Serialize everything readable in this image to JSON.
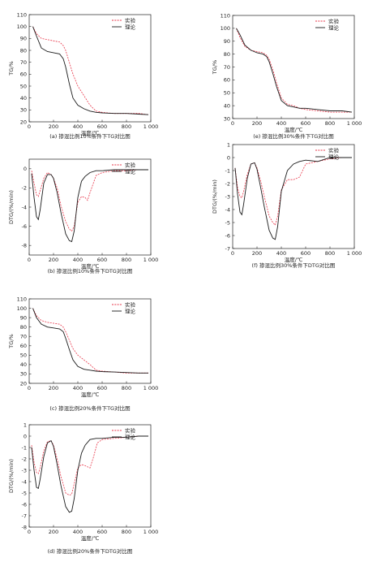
{
  "legend": {
    "exp": "实验",
    "theory": "理论"
  },
  "colors": {
    "exp": "#e8374a",
    "theory": "#1a1a1a",
    "axis": "#222222"
  },
  "chart_data": [
    {
      "id": "a",
      "type": "line",
      "caption": "(a) 掺混比例10%条件下TG对比图",
      "xlabel": "温度/℃",
      "ylabel": "TG/%",
      "xlim": [
        0,
        1000
      ],
      "ylim": [
        20,
        110
      ],
      "xticks": [
        0,
        200,
        400,
        600,
        800,
        1000
      ],
      "xtick_labels": [
        "0",
        "200",
        "400",
        "600",
        "800",
        "1 000"
      ],
      "yticks": [
        20,
        30,
        40,
        50,
        60,
        70,
        80,
        90,
        100,
        110
      ],
      "legend_position": "top-right",
      "series": [
        {
          "name": "实验",
          "style": "dashed",
          "x": [
            30,
            60,
            100,
            150,
            200,
            250,
            280,
            300,
            330,
            360,
            400,
            450,
            500,
            550,
            600,
            700,
            800,
            900,
            980
          ],
          "y": [
            100,
            94,
            90,
            89,
            88,
            87,
            84,
            80,
            70,
            60,
            50,
            42,
            34,
            29,
            28,
            27,
            27,
            27,
            26
          ]
        },
        {
          "name": "理论",
          "style": "solid",
          "x": [
            30,
            60,
            100,
            150,
            200,
            250,
            280,
            300,
            330,
            360,
            400,
            450,
            500,
            550,
            600,
            700,
            800,
            900,
            980
          ],
          "y": [
            100,
            92,
            82,
            79,
            78,
            77,
            73,
            66,
            52,
            40,
            34,
            31,
            29,
            28,
            27.5,
            27,
            27,
            26.5,
            26
          ]
        }
      ]
    },
    {
      "id": "e",
      "type": "line",
      "caption": "(e) 掺混比例30%条件下TG对比图",
      "xlabel": "温度/℃",
      "ylabel": "TG/%",
      "xlim": [
        0,
        1000
      ],
      "ylim": [
        30,
        110
      ],
      "xticks": [
        0,
        200,
        400,
        600,
        800,
        1000
      ],
      "xtick_labels": [
        "0",
        "200",
        "400",
        "600",
        "800",
        "1 000"
      ],
      "yticks": [
        30,
        40,
        50,
        60,
        70,
        80,
        90,
        100,
        110
      ],
      "legend_position": "top-right",
      "series": [
        {
          "name": "实验",
          "style": "dashed",
          "x": [
            30,
            60,
            100,
            150,
            200,
            250,
            280,
            300,
            330,
            360,
            400,
            450,
            500,
            550,
            600,
            700,
            800,
            900,
            980
          ],
          "y": [
            100,
            93,
            86,
            83,
            82,
            81,
            79,
            76,
            68,
            58,
            46,
            41,
            40,
            38,
            37,
            36,
            35,
            35,
            35
          ]
        },
        {
          "name": "理论",
          "style": "solid",
          "x": [
            30,
            60,
            100,
            150,
            200,
            250,
            280,
            300,
            330,
            360,
            400,
            450,
            500,
            550,
            600,
            700,
            800,
            900,
            980
          ],
          "y": [
            100,
            95,
            87,
            83,
            81,
            80,
            78,
            74,
            65,
            55,
            44,
            40,
            39,
            38,
            38,
            37,
            36,
            36,
            35
          ]
        }
      ]
    },
    {
      "id": "b",
      "type": "line",
      "caption": "(b) 掺混比例10%条件下DTG对比图",
      "xlabel": "温度/℃",
      "ylabel": "DTG/(%/min)",
      "xlim": [
        0,
        1000
      ],
      "ylim": [
        -9,
        1
      ],
      "xticks": [
        0,
        200,
        400,
        600,
        800,
        1000
      ],
      "xtick_labels": [
        "0",
        "200",
        "400",
        "600",
        "800",
        "1 000"
      ],
      "yticks": [
        0,
        -2,
        -4,
        -6,
        -8
      ],
      "legend_position": "top-right",
      "series": [
        {
          "name": "实验",
          "style": "dashed",
          "x": [
            20,
            40,
            60,
            75,
            90,
            120,
            150,
            180,
            200,
            230,
            260,
            300,
            330,
            350,
            370,
            400,
            430,
            460,
            480,
            500,
            550,
            600,
            700,
            800,
            900,
            980
          ],
          "y": [
            -0.2,
            -1.5,
            -2.7,
            -2.9,
            -2.3,
            -1.0,
            -0.4,
            -0.6,
            -1.0,
            -2.0,
            -3.8,
            -5.5,
            -6.3,
            -6.5,
            -6.0,
            -3.5,
            -2.9,
            -3.0,
            -3.3,
            -2.5,
            -0.7,
            -0.4,
            -0.2,
            -0.2,
            -0.1,
            -0.1
          ]
        },
        {
          "name": "理论",
          "style": "solid",
          "x": [
            20,
            40,
            60,
            75,
            90,
            120,
            150,
            180,
            200,
            230,
            260,
            300,
            330,
            350,
            370,
            400,
            430,
            460,
            500,
            550,
            600,
            700,
            800,
            900,
            980
          ],
          "y": [
            -0.5,
            -3.0,
            -5.0,
            -5.3,
            -4.3,
            -1.5,
            -0.6,
            -0.6,
            -1.0,
            -2.5,
            -4.5,
            -6.8,
            -7.5,
            -7.6,
            -6.5,
            -3.0,
            -1.3,
            -0.8,
            -0.4,
            -0.2,
            -0.2,
            -0.1,
            -0.1,
            -0.1,
            -0.1
          ]
        }
      ]
    },
    {
      "id": "f",
      "type": "line",
      "caption": "(f) 掺混比例30%条件下DTG对比图",
      "xlabel": "温度/℃",
      "ylabel": "DTG/(%/min)",
      "xlim": [
        0,
        1000
      ],
      "ylim": [
        -7,
        1
      ],
      "xticks": [
        0,
        200,
        400,
        600,
        800,
        1000
      ],
      "xtick_labels": [
        "0",
        "200",
        "400",
        "600",
        "800",
        "1 000"
      ],
      "yticks": [
        1,
        0,
        -1,
        -2,
        -3,
        -4,
        -5,
        -6,
        -7
      ],
      "legend_position": "top-right",
      "series": [
        {
          "name": "实验",
          "style": "dashed",
          "x": [
            20,
            40,
            60,
            75,
            90,
            120,
            150,
            180,
            200,
            230,
            260,
            300,
            330,
            350,
            370,
            400,
            450,
            500,
            550,
            600,
            700,
            800,
            900,
            980
          ],
          "y": [
            -0.8,
            -2.3,
            -3.0,
            -3.1,
            -2.6,
            -1.3,
            -0.5,
            -0.4,
            -0.8,
            -1.8,
            -3.0,
            -4.5,
            -5.0,
            -5.2,
            -4.5,
            -2.5,
            -1.7,
            -1.7,
            -1.5,
            -0.5,
            -0.3,
            -0.1,
            0,
            0
          ]
        },
        {
          "name": "理论",
          "style": "solid",
          "x": [
            20,
            40,
            60,
            75,
            90,
            120,
            150,
            180,
            200,
            230,
            260,
            300,
            330,
            350,
            370,
            400,
            450,
            500,
            550,
            600,
            700,
            800,
            900,
            980
          ],
          "y": [
            -0.8,
            -2.8,
            -4.2,
            -4.4,
            -3.6,
            -1.6,
            -0.5,
            -0.4,
            -0.9,
            -2.3,
            -3.8,
            -5.6,
            -6.2,
            -6.3,
            -5.3,
            -2.6,
            -1.0,
            -0.5,
            -0.3,
            -0.2,
            -0.3,
            0,
            0,
            0
          ]
        }
      ]
    },
    {
      "id": "c",
      "type": "line",
      "caption": "(c) 掺混比例20%条件下TG对比图",
      "xlabel": "温度/℃",
      "ylabel": "TG/%",
      "xlim": [
        0,
        1000
      ],
      "ylim": [
        20,
        110
      ],
      "xticks": [
        0,
        200,
        400,
        600,
        800,
        1000
      ],
      "xtick_labels": [
        "0",
        "200",
        "400",
        "600",
        "800",
        "1 000"
      ],
      "yticks": [
        20,
        30,
        40,
        50,
        60,
        70,
        80,
        90,
        100,
        110
      ],
      "legend_position": "top-right",
      "series": [
        {
          "name": "实验",
          "style": "dashed",
          "x": [
            30,
            60,
            100,
            150,
            200,
            250,
            280,
            300,
            330,
            360,
            400,
            450,
            500,
            550,
            600,
            700,
            800,
            900,
            980
          ],
          "y": [
            100,
            92,
            87,
            85,
            84,
            83,
            80,
            75,
            66,
            57,
            50,
            45,
            40,
            34,
            33,
            32,
            31,
            31,
            31
          ]
        },
        {
          "name": "理论",
          "style": "solid",
          "x": [
            30,
            60,
            100,
            150,
            200,
            250,
            280,
            300,
            330,
            360,
            400,
            450,
            500,
            550,
            600,
            700,
            800,
            900,
            980
          ],
          "y": [
            100,
            90,
            83,
            80,
            79,
            78,
            75,
            68,
            56,
            45,
            38,
            35,
            34,
            33,
            32.5,
            32,
            31.5,
            31,
            31
          ]
        }
      ]
    },
    {
      "id": "d",
      "type": "line",
      "caption": "(d) 掺混比例20%条件下DTG对比图",
      "xlabel": "温度/℃",
      "ylabel": "DTG/(%/min)",
      "xlim": [
        0,
        1000
      ],
      "ylim": [
        -8,
        1
      ],
      "xticks": [
        0,
        200,
        400,
        600,
        800,
        1000
      ],
      "xtick_labels": [
        "0",
        "200",
        "400",
        "600",
        "800",
        "1 000"
      ],
      "yticks": [
        1,
        0,
        -1,
        -2,
        -3,
        -4,
        -5,
        -6,
        -7,
        -8
      ],
      "legend_position": "top-right",
      "series": [
        {
          "name": "实验",
          "style": "dashed",
          "x": [
            20,
            40,
            60,
            75,
            90,
            120,
            150,
            180,
            200,
            230,
            260,
            300,
            330,
            350,
            370,
            400,
            430,
            460,
            500,
            530,
            560,
            600,
            700,
            800,
            900,
            980
          ],
          "y": [
            -0.8,
            -2.3,
            -3.2,
            -3.3,
            -2.8,
            -1.3,
            -0.5,
            -0.4,
            -0.8,
            -2.0,
            -3.5,
            -5.0,
            -5.2,
            -5.1,
            -4.2,
            -2.8,
            -2.5,
            -2.6,
            -2.8,
            -1.8,
            -0.6,
            -0.3,
            -0.2,
            -0.1,
            0,
            0
          ]
        },
        {
          "name": "理论",
          "style": "solid",
          "x": [
            20,
            40,
            60,
            75,
            90,
            120,
            150,
            180,
            200,
            230,
            260,
            300,
            330,
            350,
            370,
            400,
            430,
            460,
            500,
            550,
            600,
            700,
            800,
            900,
            980
          ],
          "y": [
            -1.0,
            -3.0,
            -4.5,
            -4.6,
            -3.8,
            -1.8,
            -0.6,
            -0.4,
            -0.9,
            -2.5,
            -4.3,
            -6.2,
            -6.7,
            -6.6,
            -5.5,
            -3.0,
            -1.5,
            -0.8,
            -0.3,
            -0.2,
            -0.2,
            -0.1,
            -0.1,
            0,
            0
          ]
        }
      ]
    }
  ]
}
